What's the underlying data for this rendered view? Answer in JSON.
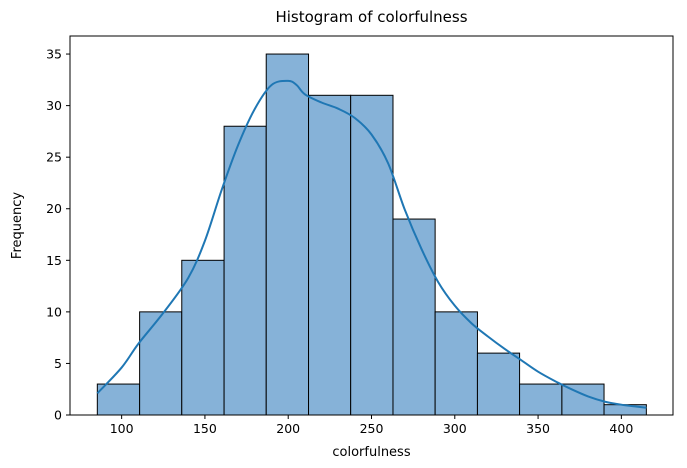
{
  "chart_data": {
    "type": "bar",
    "title": "Histogram of colorfulness",
    "xlabel": "colorfulness",
    "ylabel": "Frequency",
    "bin_edges": [
      85.4,
      110.8,
      136.1,
      161.5,
      186.8,
      212.2,
      237.5,
      262.9,
      288.2,
      313.6,
      338.9,
      364.3,
      389.6,
      415.0
    ],
    "values": [
      3,
      10,
      15,
      28,
      35,
      31,
      31,
      19,
      10,
      6,
      3,
      3,
      1
    ],
    "xlim": [
      69,
      431
    ],
    "ylim": [
      0,
      36.75
    ],
    "xticks": [
      100,
      150,
      200,
      250,
      300,
      350,
      400
    ],
    "yticks": [
      0,
      5,
      10,
      15,
      20,
      25,
      30,
      35
    ],
    "kde": {
      "x": [
        85.4,
        100,
        110,
        125,
        140,
        150,
        160,
        170,
        180,
        190,
        200,
        205,
        210,
        220,
        230,
        240,
        250,
        260,
        270,
        280,
        290,
        300,
        310,
        320,
        330,
        340,
        350,
        360,
        370,
        380,
        390,
        400,
        410,
        415
      ],
      "y": [
        2.1,
        4.6,
        6.9,
        9.9,
        13.3,
        16.9,
        21.8,
        26.2,
        29.7,
        32.0,
        32.4,
        32.0,
        31.1,
        30.3,
        29.7,
        28.8,
        27.2,
        24.4,
        19.9,
        16.1,
        12.9,
        10.6,
        8.9,
        7.6,
        6.4,
        5.3,
        4.2,
        3.3,
        2.5,
        1.8,
        1.3,
        1.0,
        0.8,
        0.7
      ]
    },
    "bar_color": "#86b2d8",
    "line_color": "#1f77b4",
    "grid": false,
    "legend": "none"
  }
}
